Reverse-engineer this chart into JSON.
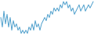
{
  "values": [
    5,
    2,
    7,
    3,
    6,
    2,
    5,
    1,
    4,
    2,
    3,
    1,
    2,
    0,
    1,
    0,
    1,
    0,
    2,
    1,
    3,
    1,
    4,
    2,
    3,
    1,
    3,
    4,
    5,
    4,
    6,
    5,
    7,
    6,
    8,
    7,
    8,
    7,
    9,
    8,
    10,
    9,
    10,
    8,
    9,
    7,
    8,
    6,
    7,
    8,
    9,
    7,
    8,
    9,
    7,
    8,
    9,
    8,
    9,
    10
  ],
  "line_color": "#4d9fcc",
  "bg_color": "#ffffff",
  "linewidth": 0.7
}
